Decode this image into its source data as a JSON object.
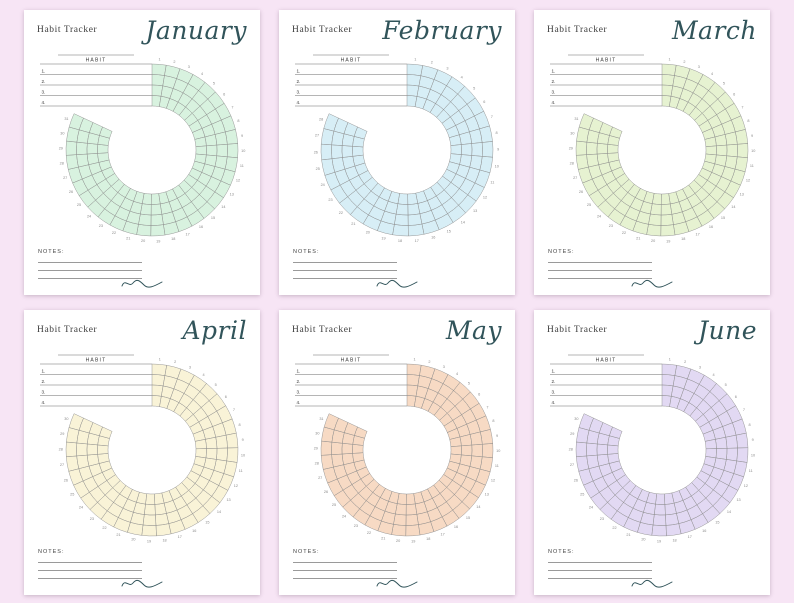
{
  "page": {
    "background": "#f7e5f5",
    "accent_ink": "#31545a",
    "card_background": "#ffffff"
  },
  "card": {
    "title": "Habit Tracker",
    "habit_header": "HABIT",
    "habit_rows": [
      "1.",
      "2.",
      "3.",
      "4."
    ],
    "notes_label": "NOTES:"
  },
  "months": [
    {
      "name": "January",
      "days": 31,
      "color": "#c7ecd2"
    },
    {
      "name": "February",
      "days": 28,
      "color": "#c6e7f2"
    },
    {
      "name": "March",
      "days": 31,
      "color": "#dcedbd"
    },
    {
      "name": "April",
      "days": 30,
      "color": "#f7eec6"
    },
    {
      "name": "May",
      "days": 31,
      "color": "#f4cbab"
    },
    {
      "name": "June",
      "days": 30,
      "color": "#d6c9ee"
    }
  ],
  "chart_data": {
    "type": "table",
    "description": "Circular monthly habit tracker grid: 4 concentric habit rings divided into one cell per day of the month, with day numbers 1..N around the outer edge and a gap at the upper-left where the 4-row HABIT table connects."
  }
}
